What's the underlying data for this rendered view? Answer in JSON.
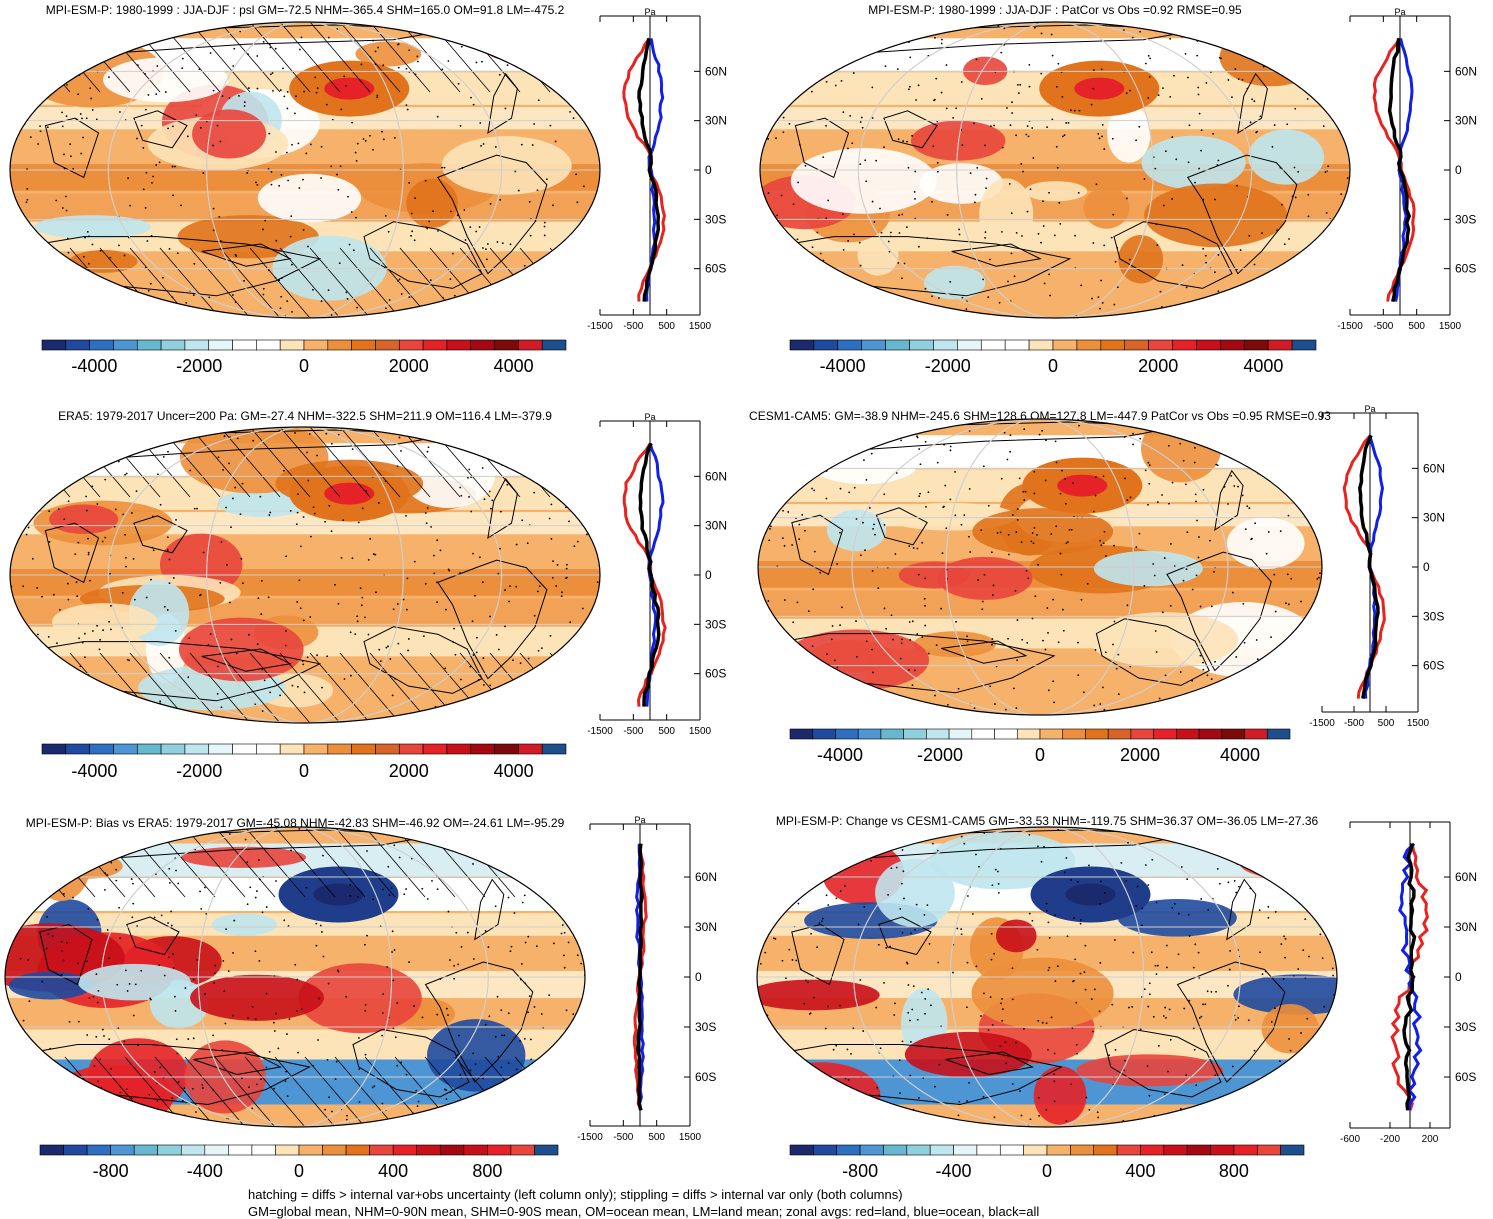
{
  "figure": {
    "footnote_line1": "hatching = diffs > internal var+obs uncertainty (left column only); stippling = diffs > internal var only (both columns)",
    "footnote_line2": "GM=global mean, NHM=0-90N mean, SHM=0-90S mean, OM=ocean mean, LM=land mean; zonal avgs: red=land, blue=ocean, black=all"
  },
  "chart_data": [
    {
      "type": "heatmap",
      "title": "MPI-ESM-P: 1980-1999 : JJA-DJF : psl GM=-72.5 NHM=-365.4 SHM=165.0 OM=91.8 LM=-475.2",
      "colorbar": {
        "ticks": [
          "-4000",
          "-2000",
          "0",
          "2000",
          "4000"
        ],
        "range": [
          -5000,
          5000
        ]
      },
      "zonal_mean": {
        "unit": "Pa",
        "x_ticks": [
          "-1500",
          "-500",
          "500",
          "1500"
        ],
        "x_range": [
          -1500,
          1500
        ],
        "y_ticks": [
          "60N",
          "30N",
          "0",
          "30S",
          "60S"
        ],
        "series": [
          "land",
          "ocean",
          "all"
        ]
      }
    },
    {
      "type": "heatmap",
      "title": "MPI-ESM-P: 1980-1999 : JJA-DJF : PatCor vs Obs =0.92 RMSE=0.95",
      "colorbar": {
        "ticks": [
          "-4000",
          "-2000",
          "0",
          "2000",
          "4000"
        ],
        "range": [
          -5000,
          5000
        ]
      },
      "zonal_mean": {
        "unit": "Pa",
        "x_ticks": [
          "-1500",
          "-500",
          "500",
          "1500"
        ],
        "x_range": [
          -1500,
          1500
        ],
        "y_ticks": [
          "60N",
          "30N",
          "0",
          "30S",
          "60S"
        ],
        "series": [
          "land",
          "ocean",
          "all"
        ]
      }
    },
    {
      "type": "heatmap",
      "title": "ERA5: 1979-2017 Uncer=200 Pa: GM=-27.4 NHM=-322.5 SHM=211.9 OM=116.4 LM=-379.9",
      "colorbar": {
        "ticks": [
          "-4000",
          "-2000",
          "0",
          "2000",
          "4000"
        ],
        "range": [
          -5000,
          5000
        ]
      },
      "zonal_mean": {
        "unit": "Pa",
        "x_ticks": [
          "-1500",
          "-500",
          "500",
          "1500"
        ],
        "x_range": [
          -1500,
          1500
        ],
        "y_ticks": [
          "60N",
          "30N",
          "0",
          "30S",
          "60S"
        ],
        "series": [
          "land",
          "ocean",
          "all"
        ]
      }
    },
    {
      "type": "heatmap",
      "title": "CESM1-CAM5: GM=-38.9 NHM=-245.6 SHM=128.6 OM=127.8 LM=-447.9 PatCor vs Obs =0.95 RMSE=0.93",
      "colorbar": {
        "ticks": [
          "-4000",
          "-2000",
          "0",
          "2000",
          "4000"
        ],
        "range": [
          -5000,
          5000
        ]
      },
      "zonal_mean": {
        "unit": "Pa",
        "x_ticks": [
          "-1500",
          "-500",
          "500",
          "1500"
        ],
        "x_range": [
          -1500,
          1500
        ],
        "y_ticks": [
          "60N",
          "30N",
          "0",
          "30S",
          "60S"
        ],
        "series": [
          "land",
          "ocean",
          "all"
        ]
      }
    },
    {
      "type": "heatmap",
      "title": "MPI-ESM-P: Bias vs ERA5: 1979-2017 GM=-45.08 NHM=-42.83 SHM=-46.92 OM=-24.61 LM=-95.29",
      "colorbar": {
        "ticks": [
          "-800",
          "-400",
          "0",
          "400",
          "800"
        ],
        "range": [
          -1100,
          1100
        ]
      },
      "zonal_mean": {
        "unit": "Pa",
        "x_ticks": [
          "-1500",
          "-500",
          "500",
          "1500"
        ],
        "x_range": [
          -1500,
          1500
        ],
        "y_ticks": [
          "60N",
          "30N",
          "0",
          "30S",
          "60S"
        ],
        "series": [
          "land",
          "ocean",
          "all"
        ]
      }
    },
    {
      "type": "heatmap",
      "title": "MPI-ESM-P: Change vs CESM1-CAM5 GM=-33.53 NHM=-119.75 SHM=36.37 OM=-36.05 LM=-27.36",
      "colorbar": {
        "ticks": [
          "-800",
          "-400",
          "0",
          "400",
          "800"
        ],
        "range": [
          -1100,
          1100
        ]
      },
      "zonal_mean": {
        "unit": "",
        "x_ticks": [
          "-600",
          "-200",
          "200"
        ],
        "x_range": [
          -600,
          400
        ],
        "y_ticks": [
          "60N",
          "30N",
          "0",
          "30S",
          "60S"
        ],
        "series": [
          "land",
          "ocean",
          "all"
        ]
      }
    }
  ]
}
